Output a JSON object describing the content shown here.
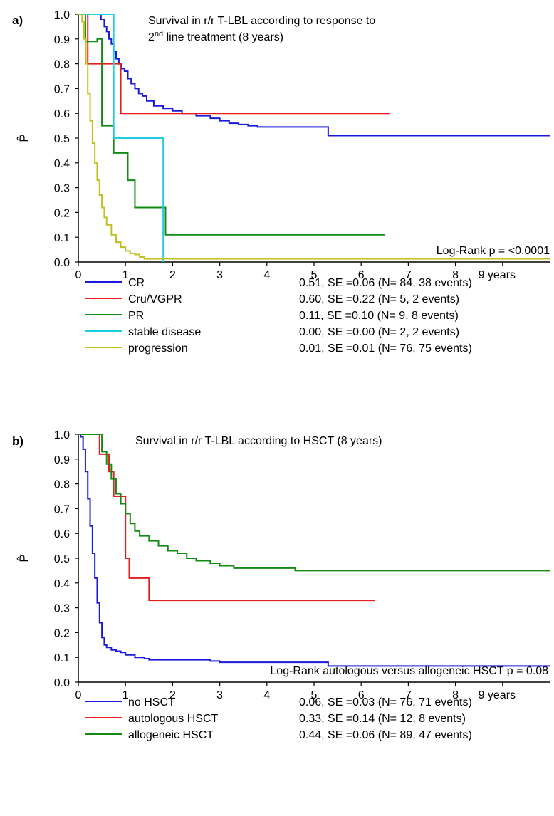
{
  "chart_data": [
    {
      "panel_label": "a)",
      "type": "line",
      "title_line1": "Survival in r/r T-LBL according to response to",
      "title_line2_prefix": "2",
      "title_line2_sup": "nd",
      "title_line2_suffix": " line treatment (8 years)",
      "ylabel": "P̂",
      "xlim": [
        0,
        10
      ],
      "ylim": [
        0,
        1
      ],
      "x_ticks": [
        "0",
        "1",
        "2",
        "3",
        "4",
        "5",
        "6",
        "7",
        "8",
        "9 years"
      ],
      "y_ticks": [
        "0.0",
        "0.1",
        "0.2",
        "0.3",
        "0.4",
        "0.5",
        "0.6",
        "0.7",
        "0.8",
        "0.9",
        "1.0"
      ],
      "annotation": "Log-Rank p = <0.0001",
      "series": [
        {
          "name": "CR",
          "stat": "0.51, SE =0.06 (N= 84, 38 events)",
          "color": "#1a1adc",
          "x": [
            0,
            0.42,
            0.48,
            0.55,
            0.6,
            0.65,
            0.7,
            0.75,
            0.8,
            0.86,
            0.92,
            0.98,
            1.05,
            1.12,
            1.2,
            1.28,
            1.36,
            1.45,
            1.6,
            1.8,
            2.0,
            2.2,
            2.5,
            2.8,
            3.0,
            3.2,
            3.4,
            3.6,
            3.8,
            4.0,
            4.3,
            4.6,
            5.3,
            10.0
          ],
          "y": [
            1.0,
            1.0,
            0.98,
            0.95,
            0.93,
            0.9,
            0.88,
            0.85,
            0.82,
            0.8,
            0.78,
            0.77,
            0.74,
            0.72,
            0.7,
            0.68,
            0.67,
            0.65,
            0.63,
            0.62,
            0.61,
            0.6,
            0.59,
            0.58,
            0.57,
            0.56,
            0.555,
            0.55,
            0.545,
            0.545,
            0.545,
            0.545,
            0.51,
            0.51
          ]
        },
        {
          "name": "Cru/VGPR",
          "stat": "0.60, SE =0.22 (N= 5, 2 events)",
          "color": "#e81c1c",
          "x": [
            0,
            0.2,
            0.2,
            0.9,
            0.9,
            6.6
          ],
          "y": [
            1.0,
            1.0,
            0.8,
            0.8,
            0.6,
            0.6
          ]
        },
        {
          "name": "PR",
          "stat": "0.11, SE =0.10 (N= 9, 8 events)",
          "color": "#138a13",
          "x": [
            0,
            0.15,
            0.15,
            0.4,
            0.4,
            0.5,
            0.5,
            0.7,
            0.7,
            0.75,
            0.75,
            1.05,
            1.05,
            1.2,
            1.2,
            1.85,
            1.85,
            6.5
          ],
          "y": [
            1.0,
            1.0,
            0.89,
            0.89,
            0.9,
            0.9,
            0.55,
            0.55,
            0.55,
            0.55,
            0.44,
            0.44,
            0.33,
            0.33,
            0.22,
            0.22,
            0.11,
            0.11
          ]
        },
        {
          "name": "stable disease",
          "stat": "0.00, SE =0.00 (N= 2, 2 events)",
          "color": "#1ecfe0",
          "x": [
            0,
            0.75,
            0.75,
            1.8,
            1.8
          ],
          "y": [
            1.0,
            1.0,
            0.5,
            0.5,
            0.0
          ]
        },
        {
          "name": "progression",
          "stat": "0.01, SE =0.01 (N= 76, 75 events)",
          "color": "#c0c020",
          "x": [
            0,
            0.08,
            0.12,
            0.16,
            0.2,
            0.25,
            0.3,
            0.35,
            0.4,
            0.45,
            0.5,
            0.55,
            0.6,
            0.7,
            0.8,
            0.9,
            1.0,
            1.1,
            1.2,
            1.3,
            1.4,
            10.0
          ],
          "y": [
            1.0,
            0.97,
            0.9,
            0.8,
            0.68,
            0.57,
            0.48,
            0.4,
            0.33,
            0.27,
            0.22,
            0.18,
            0.15,
            0.11,
            0.08,
            0.06,
            0.045,
            0.035,
            0.03,
            0.02,
            0.013,
            0.013
          ]
        }
      ]
    },
    {
      "panel_label": "b)",
      "type": "line",
      "title_line1": "Survival in r/r T-LBL according to HSCT (8 years)",
      "ylabel": "P̂",
      "xlim": [
        0,
        10
      ],
      "ylim": [
        0,
        1
      ],
      "x_ticks": [
        "0",
        "1",
        "2",
        "3",
        "4",
        "5",
        "6",
        "7",
        "8",
        "9 years"
      ],
      "y_ticks": [
        "0.0",
        "0.1",
        "0.2",
        "0.3",
        "0.4",
        "0.5",
        "0.6",
        "0.7",
        "0.8",
        "0.9",
        "1.0"
      ],
      "annotation": "Log-Rank autologous versus allogeneic HSCT p = 0.08",
      "series": [
        {
          "name": "no HSCT",
          "stat": "0.06, SE =0.03 (N= 76, 71 events)",
          "color": "#1a1adc",
          "x": [
            0,
            0.05,
            0.1,
            0.15,
            0.2,
            0.25,
            0.3,
            0.35,
            0.4,
            0.45,
            0.5,
            0.55,
            0.6,
            0.7,
            0.8,
            0.9,
            1.0,
            1.2,
            1.4,
            1.5,
            1.8,
            2.2,
            2.8,
            3.0,
            3.5,
            4.0,
            5.3,
            10.0
          ],
          "y": [
            1.0,
            0.99,
            0.94,
            0.85,
            0.74,
            0.63,
            0.52,
            0.42,
            0.32,
            0.24,
            0.18,
            0.15,
            0.14,
            0.13,
            0.125,
            0.12,
            0.11,
            0.1,
            0.095,
            0.09,
            0.09,
            0.09,
            0.085,
            0.08,
            0.08,
            0.08,
            0.065,
            0.065
          ]
        },
        {
          "name": "autologous HSCT",
          "stat": "0.33, SE =0.14 (N= 12, 8 events)",
          "color": "#e81c1c",
          "x": [
            0,
            0.45,
            0.45,
            0.65,
            0.65,
            0.75,
            0.75,
            1.0,
            1.0,
            1.08,
            1.08,
            1.5,
            1.5,
            6.3
          ],
          "y": [
            1.0,
            1.0,
            0.92,
            0.92,
            0.85,
            0.85,
            0.75,
            0.75,
            0.5,
            0.5,
            0.42,
            0.42,
            0.33,
            0.33
          ]
        },
        {
          "name": "allogeneic HSCT",
          "stat": "0.44, SE =0.06 (N= 89, 47 events)",
          "color": "#138a13",
          "x": [
            0,
            0.4,
            0.5,
            0.6,
            0.7,
            0.8,
            0.9,
            1.0,
            1.1,
            1.2,
            1.3,
            1.5,
            1.7,
            1.9,
            2.1,
            2.3,
            2.5,
            2.8,
            3.0,
            3.3,
            3.6,
            4.0,
            4.6,
            10.0
          ],
          "y": [
            1.0,
            1.0,
            0.93,
            0.88,
            0.82,
            0.76,
            0.72,
            0.68,
            0.64,
            0.61,
            0.59,
            0.57,
            0.55,
            0.53,
            0.52,
            0.5,
            0.49,
            0.48,
            0.47,
            0.46,
            0.46,
            0.46,
            0.45,
            0.45
          ]
        }
      ]
    }
  ]
}
